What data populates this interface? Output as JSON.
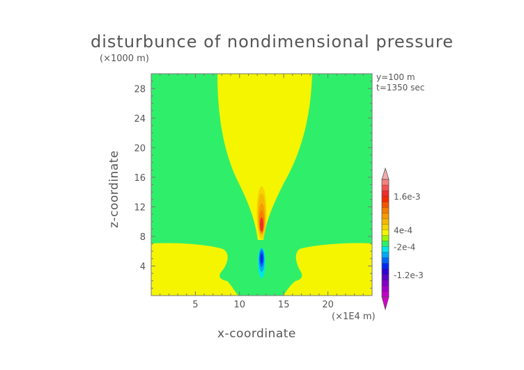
{
  "chart_data": {
    "type": "contour",
    "title": "disturbunce of nondimensional pressure",
    "xlabel": "x-coordinate",
    "ylabel": "z-coordinate",
    "x_unit": "(×1E4 m)",
    "y_unit": "(×1000 m)",
    "annotations": [
      "y=100 m",
      "t=1350 sec"
    ],
    "xlim": [
      0,
      25
    ],
    "ylim": [
      0,
      30
    ],
    "x_ticks": [
      5,
      10,
      15,
      20
    ],
    "y_ticks": [
      4,
      8,
      12,
      16,
      20,
      24,
      28
    ],
    "colorbar": {
      "labels": [
        {
          "text": "1.6e-3",
          "value": 0.0016
        },
        {
          "text": "4e-4",
          "value": 0.0004
        },
        {
          "text": "-2e-4",
          "value": -0.0002
        },
        {
          "text": "-1.2e-3",
          "value": -0.0012
        }
      ],
      "levels": [
        {
          "lo": 0.0022,
          "hi": null,
          "color": "#f4aaaa"
        },
        {
          "lo": 0.002,
          "hi": 0.0022,
          "color": "#f58080"
        },
        {
          "lo": 0.0018,
          "hi": 0.002,
          "color": "#f55252"
        },
        {
          "lo": 0.0016,
          "hi": 0.0018,
          "color": "#ee2d2d"
        },
        {
          "lo": 0.0014,
          "hi": 0.0016,
          "color": "#f52a00"
        },
        {
          "lo": 0.0012,
          "hi": 0.0014,
          "color": "#f55500"
        },
        {
          "lo": 0.001,
          "hi": 0.0012,
          "color": "#f57d00"
        },
        {
          "lo": 0.0008,
          "hi": 0.001,
          "color": "#f59a00"
        },
        {
          "lo": 0.0006,
          "hi": 0.0008,
          "color": "#f5b800"
        },
        {
          "lo": 0.0004,
          "hi": 0.0006,
          "color": "#f5d400"
        },
        {
          "lo": 0.0002,
          "hi": 0.0004,
          "color": "#f5f500"
        },
        {
          "lo": 0.0,
          "hi": 0.0002,
          "color": "#9af500"
        },
        {
          "lo": -0.0002,
          "hi": 0.0,
          "color": "#2fef6a"
        },
        {
          "lo": -0.0004,
          "hi": -0.0002,
          "color": "#00e6e6"
        },
        {
          "lo": -0.0006,
          "hi": -0.0004,
          "color": "#00a8f5"
        },
        {
          "lo": -0.0008,
          "hi": -0.0006,
          "color": "#0064f5"
        },
        {
          "lo": -0.001,
          "hi": -0.0008,
          "color": "#0028f0"
        },
        {
          "lo": -0.0012,
          "hi": -0.001,
          "color": "#2d00d2"
        },
        {
          "lo": -0.0014,
          "hi": -0.0012,
          "color": "#5a00c8"
        },
        {
          "lo": -0.0016,
          "hi": -0.0014,
          "color": "#8200c8"
        },
        {
          "lo": -0.0018,
          "hi": -0.0016,
          "color": "#a000c8"
        },
        {
          "lo": -0.002,
          "hi": -0.0018,
          "color": "#be00c8"
        },
        {
          "lo": null,
          "hi": -0.002,
          "color": "#d200c8"
        }
      ]
    },
    "field": {
      "background_color": "#2fef6a",
      "plume_color": "#f5f500",
      "low_level_color": "#f5f500",
      "core_colors": [
        "#f5d400",
        "#f5b800",
        "#f59a00",
        "#f57d00",
        "#ee2d2d"
      ],
      "negative_colors": [
        "#00e6e6",
        "#00a8f5",
        "#0064f5",
        "#0028f0"
      ]
    }
  }
}
